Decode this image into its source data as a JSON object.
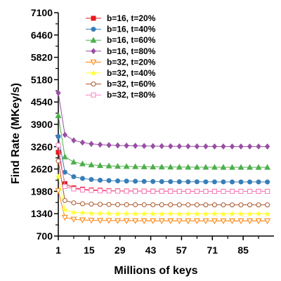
{
  "chart_data": {
    "type": "line",
    "xlabel": "Millions of keys",
    "ylabel": "Find Rate (MKey/s)",
    "xlim": [
      1,
      99
    ],
    "ylim": [
      700,
      7100
    ],
    "xticks": [
      1,
      15,
      29,
      43,
      57,
      71,
      85
    ],
    "yticks": [
      700,
      1340,
      1980,
      2620,
      3260,
      3900,
      4540,
      5180,
      5820,
      6460,
      7100
    ],
    "legend_position": "top-left",
    "x": [
      1,
      4,
      8,
      12,
      16,
      20,
      24,
      28,
      32,
      36,
      40,
      44,
      48,
      52,
      56,
      60,
      64,
      68,
      72,
      76,
      80,
      84,
      88,
      92,
      96
    ],
    "series": [
      {
        "name": "b=16, t=20%",
        "color": "#e41a1c",
        "marker": "square-filled",
        "values": [
          3100,
          2200,
          2080,
          2040,
          2020,
          2010,
          2000,
          1995,
          1990,
          1990,
          1985,
          1985,
          1985,
          1985,
          1980,
          1980,
          1980,
          1980,
          1980,
          1980,
          1980,
          1980,
          1980,
          1980,
          1980
        ]
      },
      {
        "name": "b=16, t=40%",
        "color": "#377eb8",
        "marker": "circle-filled",
        "values": [
          3550,
          2530,
          2400,
          2350,
          2320,
          2300,
          2290,
          2280,
          2275,
          2270,
          2265,
          2262,
          2260,
          2258,
          2256,
          2255,
          2254,
          2253,
          2252,
          2251,
          2250,
          2250,
          2250,
          2250,
          2250
        ]
      },
      {
        "name": "b=16, t=60%",
        "color": "#4daf4a",
        "marker": "triangle-filled",
        "values": [
          4150,
          2970,
          2820,
          2770,
          2740,
          2720,
          2710,
          2700,
          2695,
          2690,
          2686,
          2683,
          2680,
          2678,
          2676,
          2675,
          2674,
          2673,
          2672,
          2671,
          2670,
          2670,
          2670,
          2670,
          2670
        ]
      },
      {
        "name": "b=16, t=80%",
        "color": "#984ea3",
        "marker": "diamond-filled",
        "values": [
          4800,
          3600,
          3440,
          3380,
          3340,
          3320,
          3305,
          3295,
          3290,
          3285,
          3280,
          3277,
          3275,
          3273,
          3271,
          3270,
          3269,
          3268,
          3267,
          3266,
          3265,
          3265,
          3265,
          3265,
          3265
        ]
      },
      {
        "name": "b=32, t=20%",
        "color": "#ff7f00",
        "marker": "triangle-down-open",
        "values": [
          2000,
          1230,
          1180,
          1160,
          1150,
          1145,
          1142,
          1140,
          1138,
          1137,
          1136,
          1135,
          1135,
          1135,
          1134,
          1134,
          1134,
          1133,
          1133,
          1133,
          1133,
          1133,
          1133,
          1133,
          1133
        ]
      },
      {
        "name": "b=32, t=40%",
        "color": "#ffff33",
        "marker": "star-filled",
        "values": [
          2400,
          1450,
          1380,
          1360,
          1350,
          1345,
          1342,
          1340,
          1338,
          1337,
          1336,
          1335,
          1335,
          1335,
          1334,
          1334,
          1334,
          1333,
          1333,
          1333,
          1333,
          1333,
          1333,
          1333,
          1333
        ]
      },
      {
        "name": "b=32, t=60%",
        "color": "#a65628",
        "marker": "circle-open",
        "values": [
          2850,
          1720,
          1650,
          1625,
          1615,
          1608,
          1604,
          1601,
          1599,
          1598,
          1597,
          1596,
          1595,
          1595,
          1594,
          1594,
          1594,
          1593,
          1593,
          1593,
          1593,
          1593,
          1593,
          1593,
          1593
        ]
      },
      {
        "name": "b=32, t=80%",
        "color": "#f781bf",
        "marker": "square-open",
        "values": [
          3300,
          2120,
          2050,
          2020,
          2005,
          1995,
          1990,
          1987,
          1985,
          1983,
          1982,
          1981,
          1980,
          1980,
          1979,
          1979,
          1979,
          1978,
          1978,
          1978,
          1978,
          1978,
          1978,
          1978,
          1978
        ]
      }
    ]
  }
}
